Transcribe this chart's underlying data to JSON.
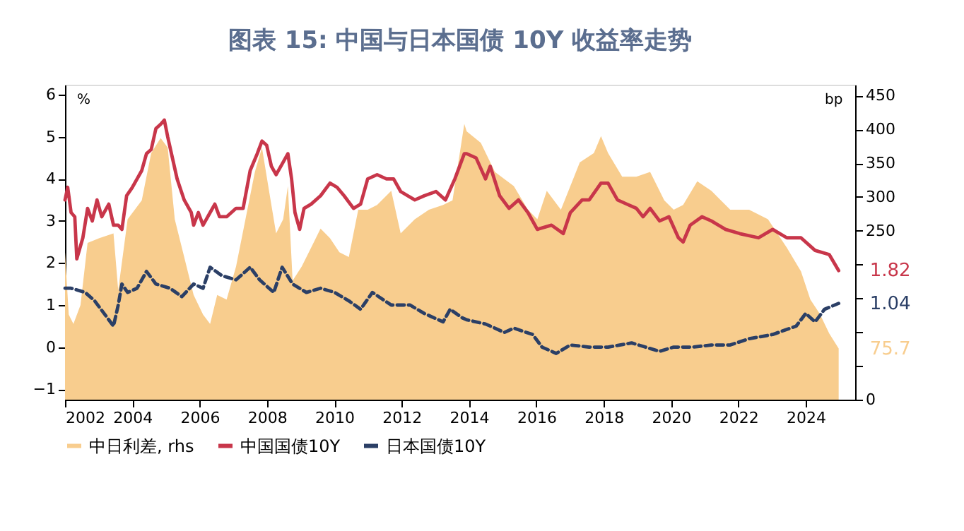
{
  "chart_data": {
    "type": "line",
    "title": "图表 15: 中国与日本国债 10Y 收益率走势",
    "ylabel": "%",
    "y2label": "bp",
    "xlim": [
      2002,
      2025.47
    ],
    "xticks": [
      2002,
      2004,
      2006,
      2008,
      2010,
      2012,
      2014,
      2016,
      2018,
      2020,
      2022,
      2024
    ],
    "ylim": [
      -1.25,
      6.24
    ],
    "yticks": [
      -1,
      0,
      1,
      2,
      3,
      4,
      5,
      6
    ],
    "y2lim": [
      0,
      466
    ],
    "y2ticks": [
      0,
      {
        "value": 50,
        "label": null
      },
      {
        "value": 100,
        "label": null
      },
      {
        "value": 150,
        "label": null
      },
      {
        "value": 200,
        "label": null
      },
      250,
      300,
      350,
      400,
      450
    ],
    "legend": "bottom",
    "series": [
      {
        "name": "中日利差, rhs",
        "type": "area",
        "axis": "y2",
        "color": "#f8cd8e",
        "x": [
          2002.0,
          2002.11,
          2002.25,
          2002.46,
          2002.67,
          2003.02,
          2003.44,
          2003.58,
          2003.86,
          2004.28,
          2004.56,
          2004.84,
          2005.05,
          2005.26,
          2005.54,
          2005.82,
          2006.1,
          2006.31,
          2006.52,
          2006.8,
          2007.08,
          2007.36,
          2007.64,
          2007.85,
          2008.06,
          2008.27,
          2008.48,
          2008.62,
          2008.76,
          2009.03,
          2009.31,
          2009.59,
          2009.87,
          2010.15,
          2010.43,
          2010.71,
          2010.99,
          2011.27,
          2011.69,
          2011.97,
          2012.39,
          2012.81,
          2013.23,
          2013.51,
          2013.86,
          2013.93,
          2014.35,
          2014.77,
          2015.33,
          2015.75,
          2016.03,
          2016.31,
          2016.73,
          2017.29,
          2017.71,
          2017.92,
          2018.13,
          2018.55,
          2018.97,
          2019.38,
          2019.8,
          2020.08,
          2020.36,
          2020.78,
          2021.2,
          2021.76,
          2022.32,
          2022.88,
          2023.44,
          2023.86,
          2024.14,
          2024.42,
          2024.7,
          2024.98
        ],
        "values": [
          218,
          126,
          112,
          140,
          232,
          239,
          246,
          162,
          267,
          295,
          365,
          387,
          373,
          267,
          211,
          155,
          126,
          112,
          155,
          148,
          197,
          267,
          337,
          373,
          309,
          246,
          267,
          316,
          176,
          197,
          225,
          253,
          239,
          218,
          211,
          281,
          281,
          288,
          309,
          246,
          267,
          281,
          288,
          295,
          408,
          397,
          380,
          337,
          316,
          281,
          267,
          309,
          281,
          351,
          365,
          390,
          365,
          330,
          330,
          337,
          295,
          281,
          288,
          323,
          309,
          281,
          281,
          267,
          225,
          190,
          148,
          127,
          98,
          75.7
        ],
        "value_labels": [
          null,
          null,
          null,
          null,
          null,
          null,
          null,
          null,
          null,
          null,
          null,
          null,
          null,
          null,
          null,
          null,
          null,
          null,
          null,
          null,
          null,
          null,
          null,
          null,
          null,
          null,
          null,
          null,
          null,
          null,
          null,
          null,
          null,
          null,
          null,
          null,
          null,
          null,
          null,
          null,
          null,
          null,
          null,
          null,
          null,
          null,
          null,
          null,
          null,
          null,
          null,
          null,
          null,
          null,
          null,
          null,
          null,
          null,
          null,
          null,
          null,
          null,
          null,
          null,
          null,
          null,
          null,
          null,
          null,
          null,
          null,
          null,
          null,
          "75.7"
        ]
      },
      {
        "name": "中国国债10Y",
        "color": "#c8364a",
        "line_style": "solid",
        "x": [
          2002.0,
          2002.08,
          2002.18,
          2002.29,
          2002.35,
          2002.53,
          2002.67,
          2002.81,
          2002.95,
          2003.09,
          2003.3,
          2003.44,
          2003.58,
          2003.69,
          2003.83,
          2004.0,
          2004.14,
          2004.28,
          2004.42,
          2004.56,
          2004.7,
          2004.84,
          2004.95,
          2005.05,
          2005.19,
          2005.33,
          2005.54,
          2005.75,
          2005.82,
          2005.96,
          2006.1,
          2006.31,
          2006.45,
          2006.59,
          2006.8,
          2007.08,
          2007.29,
          2007.5,
          2007.71,
          2007.85,
          2007.99,
          2008.13,
          2008.27,
          2008.48,
          2008.62,
          2008.73,
          2008.83,
          2008.97,
          2009.1,
          2009.31,
          2009.59,
          2009.87,
          2010.08,
          2010.29,
          2010.57,
          2010.78,
          2010.99,
          2011.27,
          2011.55,
          2011.76,
          2011.97,
          2012.18,
          2012.39,
          2012.67,
          2013.02,
          2013.3,
          2013.58,
          2013.86,
          2013.93,
          2014.21,
          2014.49,
          2014.63,
          2014.91,
          2015.19,
          2015.47,
          2015.75,
          2016.03,
          2016.45,
          2016.8,
          2017.01,
          2017.36,
          2017.57,
          2017.92,
          2018.13,
          2018.41,
          2018.69,
          2018.97,
          2019.17,
          2019.38,
          2019.66,
          2019.94,
          2020.22,
          2020.36,
          2020.57,
          2020.92,
          2021.2,
          2021.62,
          2022.04,
          2022.6,
          2023.02,
          2023.44,
          2023.86,
          2024.28,
          2024.7,
          2024.98
        ],
        "values": [
          3.5,
          3.8,
          3.2,
          3.1,
          2.1,
          2.6,
          3.3,
          3.0,
          3.5,
          3.1,
          3.4,
          2.9,
          2.9,
          2.8,
          3.6,
          3.8,
          4.0,
          4.2,
          4.6,
          4.7,
          5.2,
          5.3,
          5.4,
          5.0,
          4.5,
          4.0,
          3.5,
          3.2,
          2.9,
          3.2,
          2.9,
          3.2,
          3.4,
          3.1,
          3.1,
          3.3,
          3.3,
          4.2,
          4.6,
          4.9,
          4.8,
          4.3,
          4.1,
          4.4,
          4.6,
          4.0,
          3.2,
          2.8,
          3.3,
          3.4,
          3.6,
          3.9,
          3.8,
          3.6,
          3.3,
          3.4,
          4.0,
          4.1,
          4.0,
          4.0,
          3.7,
          3.6,
          3.5,
          3.6,
          3.7,
          3.5,
          4.0,
          4.6,
          4.6,
          4.5,
          4.0,
          4.3,
          3.6,
          3.3,
          3.5,
          3.2,
          2.8,
          2.9,
          2.7,
          3.2,
          3.5,
          3.5,
          3.9,
          3.9,
          3.5,
          3.4,
          3.3,
          3.1,
          3.3,
          3.0,
          3.1,
          2.6,
          2.5,
          2.9,
          3.1,
          3.0,
          2.8,
          2.7,
          2.6,
          2.8,
          2.6,
          2.6,
          2.3,
          2.2,
          1.82
        ],
        "value_labels": [
          null,
          null,
          null,
          null,
          null,
          null,
          null,
          null,
          null,
          null,
          null,
          null,
          null,
          null,
          null,
          null,
          null,
          null,
          null,
          null,
          null,
          null,
          null,
          null,
          null,
          null,
          null,
          null,
          null,
          null,
          null,
          null,
          null,
          null,
          null,
          null,
          null,
          null,
          null,
          null,
          null,
          null,
          null,
          null,
          null,
          null,
          null,
          null,
          null,
          null,
          null,
          null,
          null,
          null,
          null,
          null,
          null,
          null,
          null,
          null,
          null,
          null,
          null,
          null,
          null,
          null,
          null,
          null,
          null,
          null,
          null,
          null,
          null,
          null,
          null,
          null,
          null,
          null,
          null,
          null,
          null,
          null,
          null,
          null,
          null,
          null,
          null,
          null,
          null,
          null,
          null,
          null,
          null,
          null,
          null,
          null,
          null,
          null,
          null,
          null,
          null,
          null,
          null,
          null,
          "1.82"
        ]
      },
      {
        "name": "日本国债10Y",
        "color": "#2b3f66",
        "line_style": "dashed",
        "x": [
          2002.0,
          2002.18,
          2002.6,
          2002.88,
          2003.16,
          2003.44,
          2003.58,
          2003.69,
          2003.86,
          2004.14,
          2004.42,
          2004.7,
          2005.12,
          2005.47,
          2005.82,
          2006.1,
          2006.31,
          2006.66,
          2007.08,
          2007.5,
          2007.78,
          2008.2,
          2008.45,
          2008.76,
          2009.17,
          2009.59,
          2010.01,
          2010.43,
          2010.78,
          2011.13,
          2011.69,
          2012.25,
          2012.67,
          2013.23,
          2013.44,
          2013.79,
          2013.93,
          2014.49,
          2015.05,
          2015.33,
          2015.89,
          2016.17,
          2016.59,
          2017.01,
          2017.57,
          2018.13,
          2018.83,
          2019.24,
          2019.66,
          2020.08,
          2020.64,
          2021.2,
          2021.76,
          2022.32,
          2023.02,
          2023.72,
          2024.0,
          2024.28,
          2024.56,
          2024.98
        ],
        "values": [
          1.4,
          1.4,
          1.3,
          1.1,
          0.8,
          0.5,
          1.0,
          1.5,
          1.3,
          1.4,
          1.8,
          1.5,
          1.4,
          1.2,
          1.5,
          1.4,
          1.9,
          1.7,
          1.6,
          1.9,
          1.6,
          1.3,
          1.9,
          1.5,
          1.3,
          1.4,
          1.3,
          1.1,
          0.9,
          1.3,
          1.0,
          1.0,
          0.8,
          0.6,
          0.9,
          0.7,
          0.65,
          0.55,
          0.35,
          0.45,
          0.3,
          0.0,
          -0.15,
          0.05,
          0.0,
          0.0,
          0.1,
          0.0,
          -0.1,
          0.0,
          0.0,
          0.05,
          0.05,
          0.2,
          0.3,
          0.5,
          0.8,
          0.6,
          0.9,
          1.04
        ],
        "value_labels": [
          null,
          null,
          null,
          null,
          null,
          null,
          null,
          null,
          null,
          null,
          null,
          null,
          null,
          null,
          null,
          null,
          null,
          null,
          null,
          null,
          null,
          null,
          null,
          null,
          null,
          null,
          null,
          null,
          null,
          null,
          null,
          null,
          null,
          null,
          null,
          null,
          null,
          null,
          null,
          null,
          null,
          null,
          null,
          null,
          null,
          null,
          null,
          null,
          null,
          null,
          null,
          null,
          null,
          null,
          null,
          null,
          null,
          null,
          null,
          "1.04"
        ]
      }
    ]
  }
}
